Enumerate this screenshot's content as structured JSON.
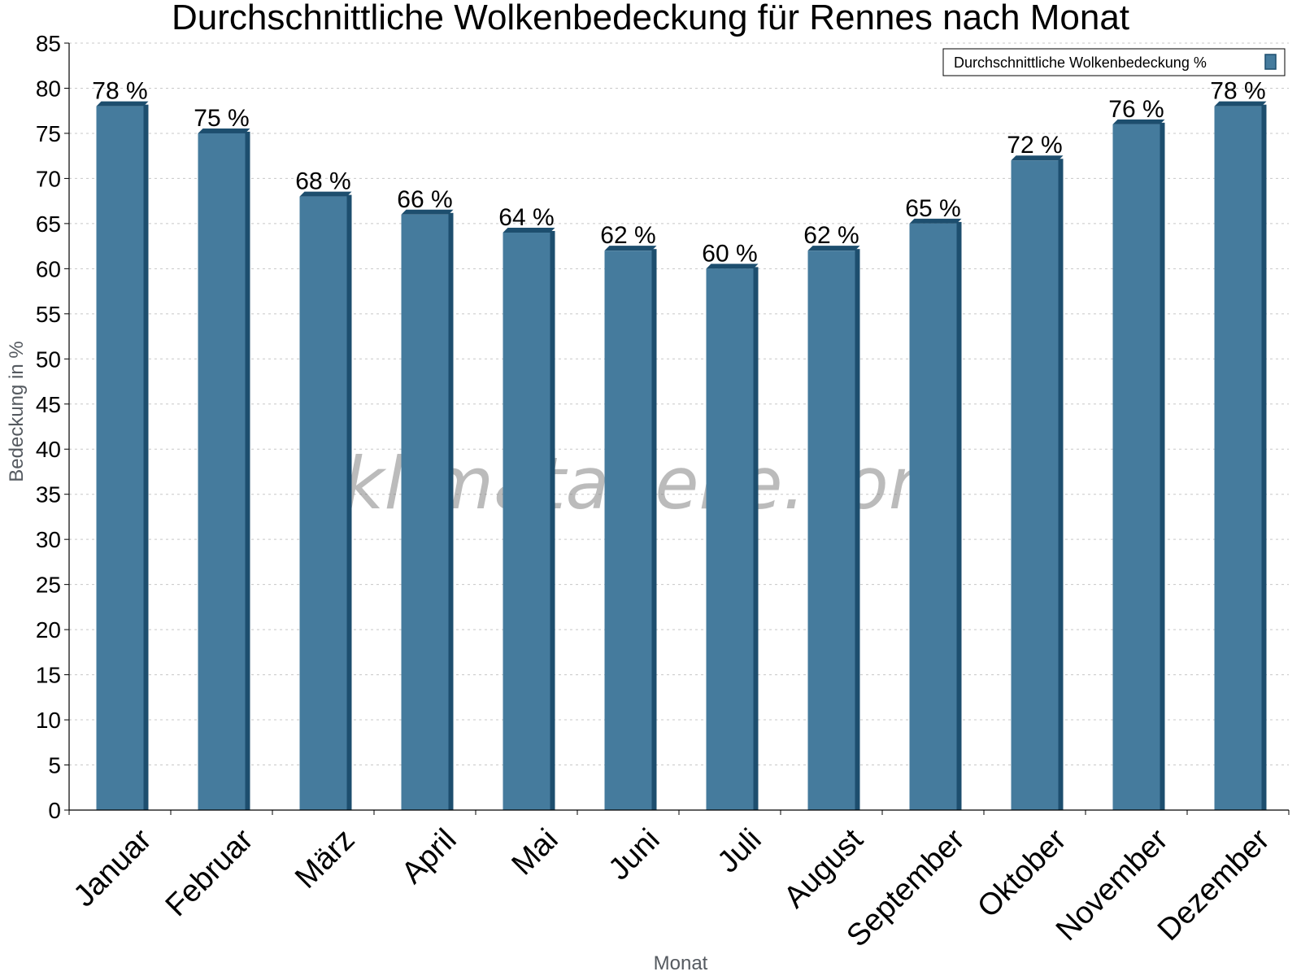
{
  "chart_data": {
    "type": "bar",
    "title": "Durchschnittliche Wolkenbedeckung für Rennes nach Monat",
    "xlabel": "Monat",
    "ylabel": "Bedeckung in %",
    "categories": [
      "Januar",
      "Februar",
      "März",
      "April",
      "Mai",
      "Juni",
      "Juli",
      "August",
      "September",
      "Oktober",
      "November",
      "Dezember"
    ],
    "series": [
      {
        "name": "Durchschnittliche Wolkenbedeckung %",
        "values": [
          78,
          75,
          68,
          66,
          64,
          62,
          60,
          62,
          65,
          72,
          76,
          78
        ],
        "labels": [
          "78 %",
          "75 %",
          "68 %",
          "66 %",
          "64 %",
          "62 %",
          "60 %",
          "62 %",
          "65 %",
          "72 %",
          "76 %",
          "78 %"
        ]
      }
    ],
    "ylim": [
      0,
      85
    ],
    "yticks": [
      0,
      5,
      10,
      15,
      20,
      25,
      30,
      35,
      40,
      45,
      50,
      55,
      60,
      65,
      70,
      75,
      80,
      85
    ],
    "grid": true,
    "legend_position": "top-right",
    "colors": {
      "bar_face": "#457b9d",
      "bar_side": "#1d4e6e",
      "bar_top": "#1d4e6e",
      "grid": "#c8c8c8"
    }
  },
  "watermark": "klimatabelle.com"
}
